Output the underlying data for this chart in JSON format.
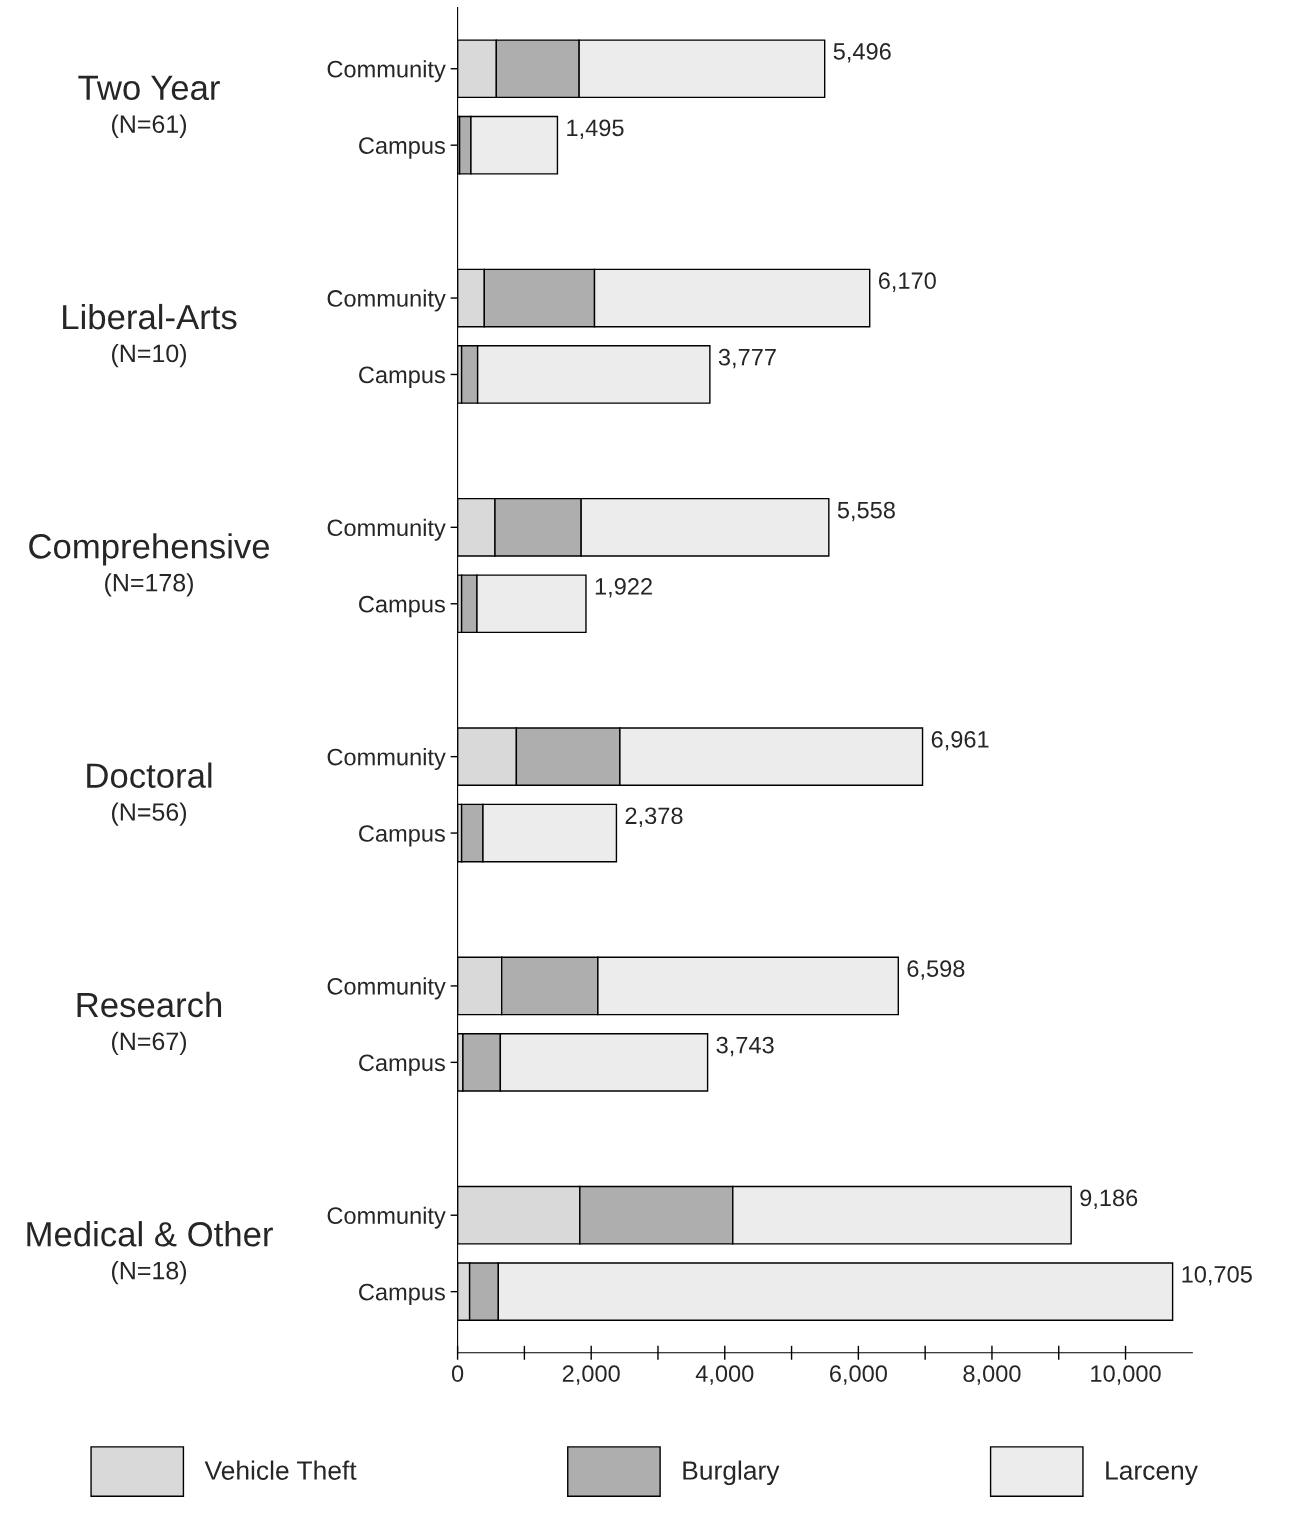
{
  "chart_data": {
    "type": "bar",
    "orientation": "horizontal",
    "stacked": true,
    "categories": [
      "Community",
      "Campus",
      null,
      "Community",
      "Campus",
      null,
      "Community",
      "Campus",
      null,
      "Community",
      "Campus",
      null,
      "Community",
      "Campus",
      null,
      "Community",
      "Campus"
    ],
    "series": [
      {
        "name": "Vehicle Theft",
        "color": "#d9d9d9",
        "values": [
          580,
          30,
          null,
          400,
          60,
          null,
          560,
          60,
          null,
          880,
          60,
          null,
          660,
          80,
          null,
          1830,
          180
        ]
      },
      {
        "name": "Burglary",
        "color": "#aeaeae",
        "values": [
          1240,
          170,
          null,
          1650,
          240,
          null,
          1290,
          230,
          null,
          1550,
          320,
          null,
          1440,
          560,
          null,
          2290,
          430
        ]
      },
      {
        "name": "Larceny",
        "color": "#ececec",
        "values": [
          3676,
          1295,
          null,
          4120,
          3477,
          null,
          3708,
          1632,
          null,
          4531,
          1998,
          null,
          4498,
          3103,
          null,
          5066,
          10095
        ]
      }
    ],
    "totals": [
      "5,496",
      "1,495",
      null,
      "6,170",
      "3,777",
      null,
      "5,558",
      "1,922",
      null,
      "6,961",
      "2,378",
      null,
      "6,598",
      "3,743",
      null,
      "9,186",
      "10,705"
    ],
    "annotations": [
      "Two Year",
      "(N=61)",
      "Liberal-Arts",
      "(N=10)",
      "Comprehensive",
      "(N=178)",
      "Doctoral",
      "(N=56)",
      "Research",
      "(N=67)",
      "Medical & Other",
      "(N=18)"
    ],
    "xlim": [
      0,
      11000
    ],
    "xticks": [
      0,
      {
        "value": 1000,
        "label": null
      },
      {
        "value": 2000,
        "label": "2,000"
      },
      {
        "value": 3000,
        "label": null
      },
      {
        "value": 4000,
        "label": "4,000"
      },
      {
        "value": 5000,
        "label": null
      },
      {
        "value": 6000,
        "label": "6,000"
      },
      {
        "value": 7000,
        "label": null
      },
      {
        "value": 8000,
        "label": "8,000"
      },
      {
        "value": 9000,
        "label": null
      },
      {
        "value": 10000,
        "label": "10,000"
      }
    ],
    "grid": false,
    "legend": "bottom"
  }
}
